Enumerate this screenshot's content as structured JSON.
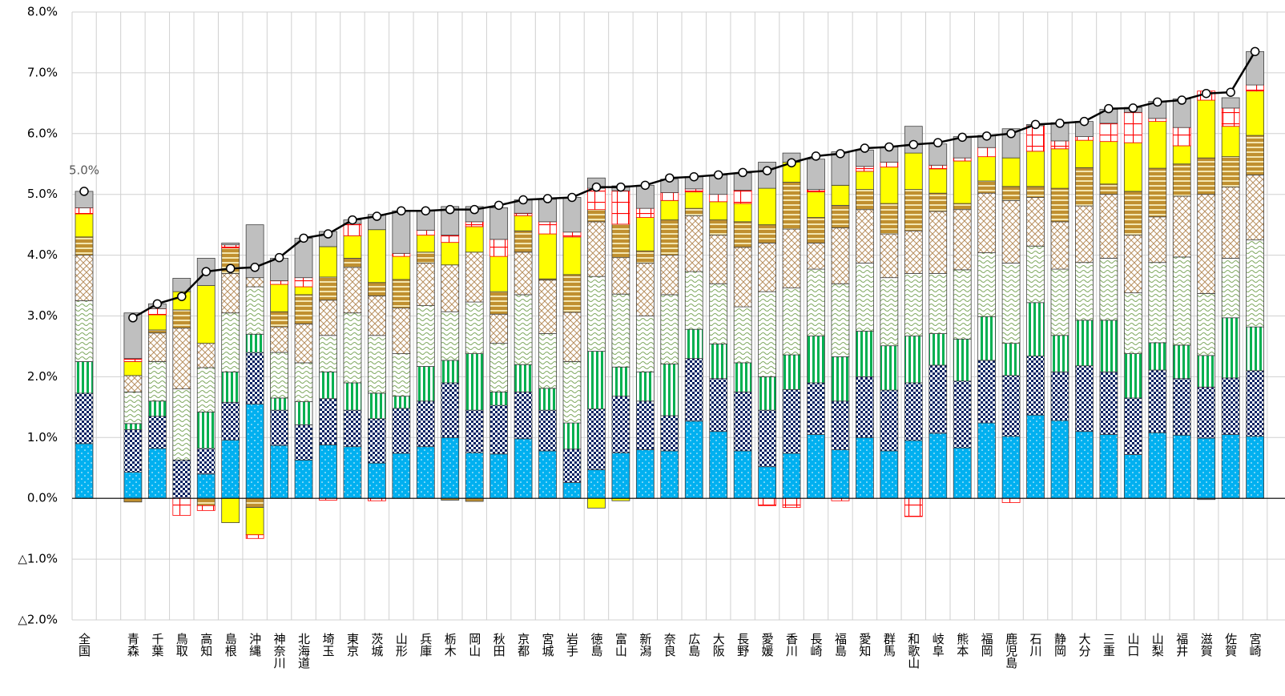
{
  "chart_data": {
    "type": "bar",
    "stacked": true,
    "grid": true,
    "categories": [
      "全国",
      null,
      "青森",
      "千葉",
      "鳥取",
      "高知",
      "島根",
      "沖縄",
      "神奈川",
      "北海道",
      "埼玉",
      "東京",
      "茨城",
      "山形",
      "兵庫",
      "栃木",
      "岡山",
      "秋田",
      "京都",
      "宮城",
      "岩手",
      "徳島",
      "富山",
      "新潟",
      "奈良",
      "広島",
      "大阪",
      "長野",
      "愛媛",
      "香川",
      "長崎",
      "福島",
      "愛知",
      "群馬",
      "和歌山",
      "岐阜",
      "熊本",
      "福岡",
      "鹿児島",
      "石川",
      "静岡",
      "大分",
      "三重",
      "山口",
      "山梨",
      "福井",
      "滋賀",
      "佐賀",
      "宮崎"
    ],
    "ylim": [
      -2,
      8
    ],
    "yticks": [
      {
        "value": 8,
        "label": "8.0%"
      },
      {
        "value": 7,
        "label": "7.0%"
      },
      {
        "value": 6,
        "label": "6.0%"
      },
      {
        "value": 5,
        "label": "5.0%"
      },
      {
        "value": 4,
        "label": "4.0%"
      },
      {
        "value": 3,
        "label": "3.0%"
      },
      {
        "value": 2,
        "label": "2.0%"
      },
      {
        "value": 1,
        "label": "1.0%"
      },
      {
        "value": 0,
        "label": "0.0%"
      },
      {
        "value": -1,
        "label": "△1.0%"
      },
      {
        "value": -2,
        "label": "△2.0%"
      }
    ],
    "series": [
      {
        "color": "#00b0f0",
        "pattern": "dots",
        "values": [
          0.9,
          null,
          0.43,
          0.82,
          0,
          0.4,
          0.96,
          1.55,
          0.87,
          0.63,
          0.88,
          0.85,
          0.58,
          0.74,
          0.85,
          1.0,
          0.75,
          0.73,
          0.98,
          0.78,
          0.26,
          0.47,
          0.75,
          0.8,
          0.78,
          1.27,
          1.1,
          0.78,
          0.52,
          0.74,
          1.05,
          0.8,
          1.0,
          0.78,
          0.95,
          1.07,
          0.83,
          1.24,
          1.02,
          1.37,
          1.28,
          1.1,
          1.05,
          0.72,
          1.08,
          1.04,
          0.99,
          1.05,
          1.02
        ]
      },
      {
        "color": "#002060",
        "pattern": "checker",
        "values": [
          0.83,
          null,
          0.7,
          0.53,
          0.63,
          0.42,
          0.62,
          0.85,
          0.58,
          0.58,
          0.76,
          0.6,
          0.73,
          0.74,
          0.75,
          0.9,
          0.7,
          0.8,
          0.77,
          0.67,
          0.55,
          1.0,
          0.93,
          0.8,
          0.58,
          1.03,
          0.87,
          0.97,
          0.93,
          1.05,
          0.85,
          0.8,
          1.0,
          1.0,
          0.95,
          1.12,
          1.1,
          1.03,
          1.0,
          0.97,
          0.8,
          1.08,
          1.03,
          0.93,
          1.03,
          0.93,
          0.84,
          0.93,
          1.08
        ]
      },
      {
        "color": "#00b050",
        "pattern": "vstripe",
        "values": [
          0.52,
          null,
          0.1,
          0.25,
          0,
          0.6,
          0.5,
          0.3,
          0.2,
          0.38,
          0.44,
          0.45,
          0.42,
          0.2,
          0.57,
          0.37,
          0.93,
          0.22,
          0.45,
          0.36,
          0.43,
          0.95,
          0.48,
          0.48,
          0.85,
          0.48,
          0.57,
          0.48,
          0.55,
          0.57,
          0.77,
          0.73,
          0.75,
          0.73,
          0.77,
          0.52,
          0.69,
          0.72,
          0.53,
          0.88,
          0.6,
          0.75,
          0.85,
          0.73,
          0.45,
          0.55,
          0.52,
          0.99,
          0.72
        ]
      },
      {
        "color": "#7fa860",
        "pattern": "wave",
        "values": [
          1.0,
          null,
          0.52,
          0.65,
          1.17,
          0.73,
          0.97,
          0.78,
          0.75,
          0.64,
          0.6,
          1.15,
          0.95,
          0.7,
          1.0,
          0.8,
          0.85,
          0.8,
          1.15,
          0.9,
          1.01,
          1.23,
          1.2,
          0.92,
          1.14,
          0.95,
          0.99,
          0.92,
          1.4,
          1.1,
          1.1,
          1.2,
          1.12,
          1.12,
          1.03,
          0.99,
          1.14,
          1.05,
          1.32,
          0.93,
          1.09,
          0.95,
          1.02,
          1.0,
          1.32,
          1.45,
          1.02,
          0.98,
          1.43
        ]
      },
      {
        "color": "#b89060",
        "pattern": "cross",
        "values": [
          0.75,
          null,
          0.27,
          0.47,
          1.0,
          0.4,
          0.65,
          0.15,
          0.42,
          0.64,
          0.58,
          0.75,
          0.65,
          0.75,
          0.7,
          0.77,
          0.82,
          0.48,
          0.7,
          0.88,
          0.81,
          0.9,
          0.6,
          0.87,
          0.65,
          0.92,
          0.8,
          0.98,
          0.8,
          0.97,
          0.43,
          0.92,
          0.88,
          0.72,
          0.7,
          1.02,
          0.99,
          0.98,
          1.03,
          0.8,
          0.78,
          0.93,
          1.05,
          0.95,
          0.75,
          1.0,
          1.63,
          1.17,
          1.07
        ]
      },
      {
        "color": "#c09030",
        "pattern": "hstripe",
        "values": [
          0.3,
          null,
          -0.06,
          0.05,
          0.3,
          -0.12,
          0.42,
          -0.15,
          0.25,
          0.48,
          0.38,
          0.15,
          0.22,
          0.47,
          0.18,
          -0.03,
          -0.05,
          0.37,
          0.35,
          0.02,
          0.62,
          0.2,
          0.55,
          0.2,
          0.58,
          0.12,
          0.25,
          0.42,
          0.3,
          0.77,
          0.42,
          0.37,
          0.33,
          0.5,
          0.68,
          0.3,
          0.1,
          0.2,
          0.23,
          0.18,
          0.55,
          0.63,
          0.17,
          0.72,
          0.8,
          0.53,
          0.6,
          0.5,
          0.65
        ]
      },
      {
        "color": "#ffff00",
        "pattern": "solid",
        "values": [
          0.38,
          null,
          0.23,
          0.25,
          0.3,
          0.95,
          -0.4,
          -0.45,
          0.45,
          0.13,
          0.5,
          0.37,
          0.87,
          0.38,
          0.28,
          0.37,
          0.42,
          0.58,
          0.25,
          0.74,
          0.62,
          -0.16,
          -0.04,
          0.55,
          0.32,
          0.27,
          0.3,
          0.3,
          0.6,
          0.33,
          0.42,
          0.33,
          0.3,
          0.6,
          0.6,
          0.4,
          0.7,
          0.4,
          0.47,
          0.58,
          0.65,
          0.45,
          0.7,
          0.8,
          0.77,
          0.3,
          0.95,
          0.5,
          0.73
        ]
      },
      {
        "color": "#ff0000",
        "pattern": "grid",
        "values": [
          0.1,
          null,
          0.05,
          0.1,
          -0.28,
          -0.08,
          0.05,
          -0.06,
          0.06,
          0.15,
          -0.03,
          0.2,
          -0.04,
          0.05,
          0.08,
          0.12,
          0.08,
          0.28,
          0.04,
          0.2,
          0.08,
          0.35,
          0.55,
          0.15,
          0.13,
          0.05,
          0.12,
          0.22,
          -0.12,
          -0.15,
          0.04,
          -0.04,
          0.08,
          0.08,
          -0.3,
          0.06,
          0.05,
          0.15,
          -0.07,
          0.42,
          0.13,
          0.06,
          0.3,
          0.5,
          0.05,
          0.3,
          0.15,
          0.3,
          0.1
        ]
      },
      {
        "color": "#bfbfbf",
        "pattern": "solid",
        "values": [
          0.27,
          null,
          0.75,
          0.08,
          0.22,
          0.45,
          0.03,
          0.87,
          0.37,
          0.65,
          0.25,
          0.06,
          0.25,
          0.7,
          0.32,
          0.47,
          0.25,
          0.52,
          0.22,
          0.37,
          0.57,
          0.17,
          0.08,
          0.38,
          0.22,
          0.2,
          0.32,
          0.28,
          0.43,
          0.15,
          0.5,
          0.55,
          0.27,
          0.25,
          0.44,
          0.35,
          0.35,
          0.2,
          0.48,
          0.02,
          0.3,
          0.25,
          0.23,
          0.08,
          0.28,
          0.47,
          -0.02,
          0.17,
          0.55
        ]
      },
      {
        "type": "line",
        "color": "#000000",
        "values": [
          5.05,
          null,
          2.97,
          3.2,
          3.32,
          3.73,
          3.78,
          3.8,
          3.96,
          4.28,
          4.35,
          4.58,
          4.64,
          4.73,
          4.73,
          4.75,
          4.75,
          4.82,
          4.91,
          4.93,
          4.95,
          5.12,
          5.12,
          5.15,
          5.27,
          5.29,
          5.32,
          5.36,
          5.39,
          5.52,
          5.63,
          5.67,
          5.76,
          5.78,
          5.82,
          5.85,
          5.94,
          5.96,
          6.0,
          6.15,
          6.17,
          6.2,
          6.41,
          6.42,
          6.52,
          6.55,
          6.66,
          6.68,
          7.35
        ],
        "value_labels": [
          "5.0%",
          null,
          null,
          null,
          null,
          null,
          null,
          null,
          null,
          null,
          null,
          null,
          null,
          null,
          null,
          null,
          null,
          null,
          null,
          null,
          null,
          null,
          null,
          null,
          null,
          null,
          null,
          null,
          null,
          null,
          null,
          null,
          null,
          null,
          null,
          null,
          null,
          null,
          null,
          null,
          null,
          null,
          null,
          null,
          null,
          null,
          null,
          null,
          null
        ]
      }
    ]
  }
}
